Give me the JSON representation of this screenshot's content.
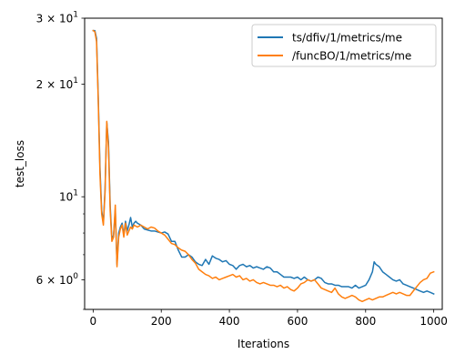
{
  "chart_data": {
    "type": "line",
    "title": "",
    "xlabel": "Iterations",
    "ylabel": "test_loss",
    "xlim": [
      -25,
      1025
    ],
    "ylim": [
      5.0,
      30.0
    ],
    "yscale": "log",
    "grid": false,
    "legend_position": "top-right",
    "x_ticks": [
      {
        "value": 0,
        "label": "0"
      },
      {
        "value": 200,
        "label": "200"
      },
      {
        "value": 400,
        "label": "400"
      },
      {
        "value": 600,
        "label": "600"
      },
      {
        "value": 800,
        "label": "800"
      },
      {
        "value": 1000,
        "label": "1000"
      }
    ],
    "y_major_ticks": [
      {
        "value": 10,
        "label": "10",
        "sup": "1"
      },
      {
        "value": 20,
        "label": "2 × 10",
        "sup": "1"
      },
      {
        "value": 30,
        "label": "3 × 10",
        "sup": "1"
      },
      {
        "value": 6,
        "label": "6 × 10",
        "sup": "0"
      }
    ],
    "y_minor_ticks": [
      5,
      7,
      8,
      9
    ],
    "series": [
      {
        "name": "ts/dfiv/1/metrics/me",
        "color": "#1f77b4",
        "points": [
          [
            0,
            27.8
          ],
          [
            5,
            27.8
          ],
          [
            10,
            26.5
          ],
          [
            15,
            18.5
          ],
          [
            20,
            12.0
          ],
          [
            25,
            9.2
          ],
          [
            30,
            8.5
          ],
          [
            35,
            10.5
          ],
          [
            40,
            15.8
          ],
          [
            45,
            14.0
          ],
          [
            50,
            9.5
          ],
          [
            55,
            7.7
          ],
          [
            60,
            7.9
          ],
          [
            65,
            9.2
          ],
          [
            70,
            6.6
          ],
          [
            75,
            8.0
          ],
          [
            80,
            8.3
          ],
          [
            85,
            8.5
          ],
          [
            90,
            7.9
          ],
          [
            95,
            8.6
          ],
          [
            100,
            8.1
          ],
          [
            105,
            8.4
          ],
          [
            110,
            8.8
          ],
          [
            115,
            8.3
          ],
          [
            120,
            8.5
          ],
          [
            125,
            8.6
          ],
          [
            130,
            8.5
          ],
          [
            140,
            8.4
          ],
          [
            150,
            8.2
          ],
          [
            160,
            8.15
          ],
          [
            170,
            8.1
          ],
          [
            180,
            8.1
          ],
          [
            190,
            8.05
          ],
          [
            200,
            8.0
          ],
          [
            210,
            8.05
          ],
          [
            220,
            7.95
          ],
          [
            230,
            7.6
          ],
          [
            240,
            7.6
          ],
          [
            250,
            7.2
          ],
          [
            260,
            6.9
          ],
          [
            270,
            6.9
          ],
          [
            280,
            7.0
          ],
          [
            290,
            6.9
          ],
          [
            300,
            6.7
          ],
          [
            310,
            6.6
          ],
          [
            320,
            6.55
          ],
          [
            330,
            6.8
          ],
          [
            340,
            6.6
          ],
          [
            350,
            6.95
          ],
          [
            360,
            6.85
          ],
          [
            370,
            6.8
          ],
          [
            380,
            6.7
          ],
          [
            390,
            6.75
          ],
          [
            400,
            6.6
          ],
          [
            410,
            6.55
          ],
          [
            420,
            6.4
          ],
          [
            430,
            6.55
          ],
          [
            440,
            6.6
          ],
          [
            450,
            6.5
          ],
          [
            460,
            6.55
          ],
          [
            470,
            6.45
          ],
          [
            480,
            6.5
          ],
          [
            490,
            6.45
          ],
          [
            500,
            6.4
          ],
          [
            510,
            6.5
          ],
          [
            520,
            6.45
          ],
          [
            530,
            6.3
          ],
          [
            540,
            6.3
          ],
          [
            550,
            6.2
          ],
          [
            560,
            6.1
          ],
          [
            570,
            6.1
          ],
          [
            580,
            6.1
          ],
          [
            590,
            6.05
          ],
          [
            600,
            6.1
          ],
          [
            610,
            6.0
          ],
          [
            620,
            6.1
          ],
          [
            630,
            6.0
          ],
          [
            640,
            5.95
          ],
          [
            650,
            6.0
          ],
          [
            660,
            6.1
          ],
          [
            670,
            6.05
          ],
          [
            680,
            5.9
          ],
          [
            690,
            5.85
          ],
          [
            700,
            5.85
          ],
          [
            710,
            5.8
          ],
          [
            720,
            5.8
          ],
          [
            730,
            5.75
          ],
          [
            740,
            5.75
          ],
          [
            750,
            5.75
          ],
          [
            760,
            5.7
          ],
          [
            770,
            5.8
          ],
          [
            780,
            5.7
          ],
          [
            790,
            5.75
          ],
          [
            800,
            5.8
          ],
          [
            810,
            6.0
          ],
          [
            820,
            6.3
          ],
          [
            825,
            6.7
          ],
          [
            830,
            6.6
          ],
          [
            840,
            6.5
          ],
          [
            850,
            6.3
          ],
          [
            860,
            6.2
          ],
          [
            870,
            6.1
          ],
          [
            880,
            6.0
          ],
          [
            890,
            5.95
          ],
          [
            900,
            6.0
          ],
          [
            910,
            5.85
          ],
          [
            920,
            5.8
          ],
          [
            930,
            5.75
          ],
          [
            940,
            5.7
          ],
          [
            950,
            5.65
          ],
          [
            960,
            5.6
          ],
          [
            970,
            5.55
          ],
          [
            980,
            5.6
          ],
          [
            990,
            5.55
          ],
          [
            1000,
            5.5
          ]
        ]
      },
      {
        "name": "/funcBO/1/metrics/me",
        "color": "#ff7f0e",
        "points": [
          [
            0,
            27.8
          ],
          [
            5,
            27.6
          ],
          [
            10,
            26.0
          ],
          [
            15,
            18.0
          ],
          [
            20,
            11.5
          ],
          [
            25,
            9.0
          ],
          [
            30,
            8.4
          ],
          [
            35,
            10.3
          ],
          [
            40,
            15.9
          ],
          [
            45,
            13.5
          ],
          [
            50,
            9.2
          ],
          [
            55,
            7.6
          ],
          [
            60,
            7.8
          ],
          [
            65,
            9.5
          ],
          [
            70,
            6.5
          ],
          [
            75,
            7.8
          ],
          [
            80,
            8.2
          ],
          [
            85,
            8.4
          ],
          [
            90,
            7.8
          ],
          [
            95,
            8.5
          ],
          [
            100,
            7.9
          ],
          [
            105,
            8.1
          ],
          [
            110,
            8.3
          ],
          [
            115,
            8.2
          ],
          [
            120,
            8.4
          ],
          [
            130,
            8.3
          ],
          [
            140,
            8.4
          ],
          [
            150,
            8.3
          ],
          [
            160,
            8.2
          ],
          [
            170,
            8.3
          ],
          [
            180,
            8.25
          ],
          [
            190,
            8.1
          ],
          [
            200,
            8.0
          ],
          [
            210,
            7.9
          ],
          [
            220,
            7.7
          ],
          [
            230,
            7.5
          ],
          [
            240,
            7.45
          ],
          [
            250,
            7.3
          ],
          [
            260,
            7.2
          ],
          [
            270,
            7.15
          ],
          [
            280,
            7.0
          ],
          [
            290,
            6.8
          ],
          [
            300,
            6.65
          ],
          [
            310,
            6.4
          ],
          [
            320,
            6.3
          ],
          [
            330,
            6.2
          ],
          [
            340,
            6.15
          ],
          [
            350,
            6.05
          ],
          [
            360,
            6.1
          ],
          [
            370,
            6.0
          ],
          [
            380,
            6.05
          ],
          [
            390,
            6.1
          ],
          [
            400,
            6.15
          ],
          [
            410,
            6.2
          ],
          [
            420,
            6.1
          ],
          [
            430,
            6.15
          ],
          [
            440,
            6.0
          ],
          [
            450,
            6.05
          ],
          [
            460,
            5.95
          ],
          [
            470,
            6.0
          ],
          [
            480,
            5.9
          ],
          [
            490,
            5.85
          ],
          [
            500,
            5.9
          ],
          [
            510,
            5.85
          ],
          [
            520,
            5.8
          ],
          [
            530,
            5.8
          ],
          [
            540,
            5.75
          ],
          [
            550,
            5.8
          ],
          [
            560,
            5.7
          ],
          [
            570,
            5.75
          ],
          [
            580,
            5.65
          ],
          [
            590,
            5.6
          ],
          [
            600,
            5.7
          ],
          [
            610,
            5.85
          ],
          [
            620,
            5.9
          ],
          [
            630,
            6.0
          ],
          [
            640,
            5.95
          ],
          [
            650,
            6.0
          ],
          [
            660,
            5.85
          ],
          [
            670,
            5.7
          ],
          [
            680,
            5.65
          ],
          [
            690,
            5.6
          ],
          [
            700,
            5.55
          ],
          [
            710,
            5.7
          ],
          [
            720,
            5.5
          ],
          [
            730,
            5.4
          ],
          [
            740,
            5.35
          ],
          [
            750,
            5.4
          ],
          [
            760,
            5.45
          ],
          [
            770,
            5.4
          ],
          [
            780,
            5.3
          ],
          [
            790,
            5.25
          ],
          [
            800,
            5.3
          ],
          [
            810,
            5.35
          ],
          [
            820,
            5.3
          ],
          [
            830,
            5.35
          ],
          [
            840,
            5.4
          ],
          [
            850,
            5.4
          ],
          [
            860,
            5.45
          ],
          [
            870,
            5.5
          ],
          [
            880,
            5.55
          ],
          [
            890,
            5.5
          ],
          [
            900,
            5.55
          ],
          [
            910,
            5.5
          ],
          [
            920,
            5.45
          ],
          [
            930,
            5.45
          ],
          [
            940,
            5.6
          ],
          [
            950,
            5.75
          ],
          [
            960,
            5.9
          ],
          [
            970,
            6.0
          ],
          [
            980,
            6.05
          ],
          [
            990,
            6.25
          ],
          [
            1000,
            6.3
          ]
        ]
      }
    ]
  }
}
